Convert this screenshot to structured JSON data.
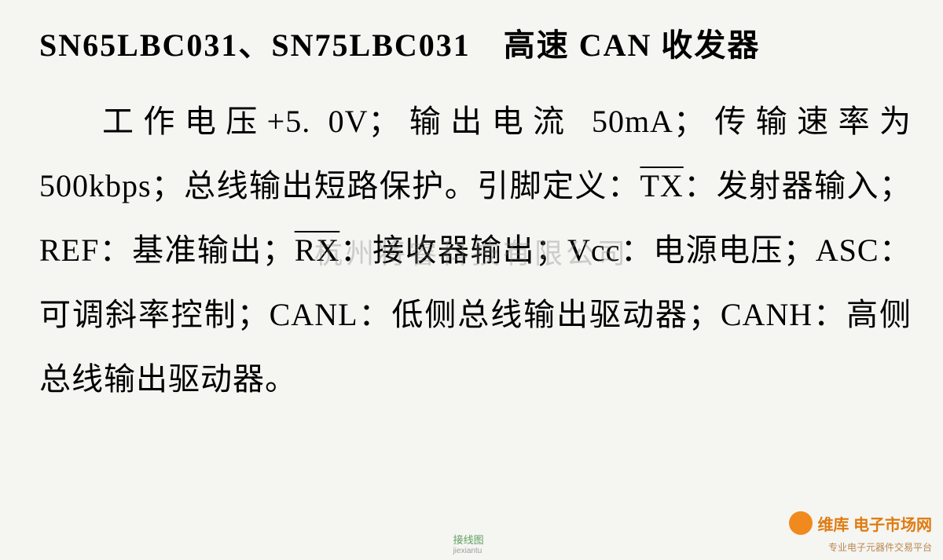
{
  "title": "SN65LBC031、SN75LBC031　高速 CAN 收发器",
  "body": {
    "p1_a": "工作电压+5. 0V；输出电流 50mA；传输速率为 500kbps；总线输出短路保护。引脚定义：",
    "tx": "TX",
    "p1_b": "：发射器输入；REF：基准输出；",
    "rx": "RX",
    "p1_c": "：接收器输出；Vcc：电源电压；ASC：可调斜率控制；CANL：低侧总线输出驱动器；CANH：高侧总线输出驱动器。"
  },
  "watermarks": {
    "center": "杭州将睿科技有限公司",
    "br_main": "维库 电子市场网",
    "br_sub": "专业电子元器件交易平台",
    "green_main": "接线图",
    "green_sub": "jiexiantu"
  },
  "colors": {
    "bg": "#f5f5f2",
    "text": "#000000",
    "wm_center": "rgba(130,130,130,0.35)",
    "wm_orange": "#e07b10",
    "wm_green": "#3a8a3a"
  }
}
